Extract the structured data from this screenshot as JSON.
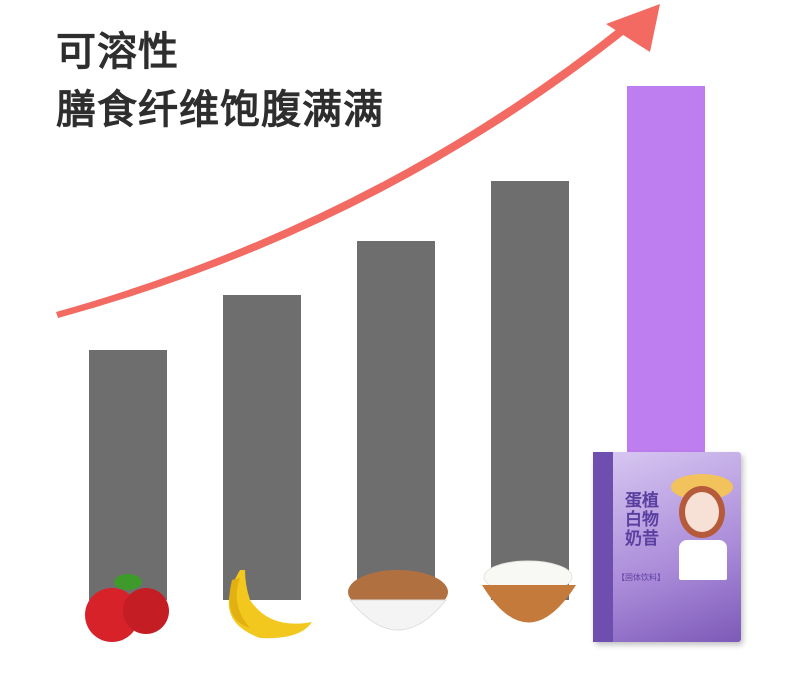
{
  "headline": {
    "line1": "可溶性",
    "line2": "膳食纤维饱腹满满"
  },
  "colors": {
    "bar": "#6e6e6e",
    "highlight_bar": "#bf7ef0",
    "arrow": "#f26a62",
    "text": "#2e2e2e"
  },
  "chart_data": {
    "type": "bar",
    "categories": [
      "apple",
      "banana",
      "nuts",
      "rice",
      "plant protein shake"
    ],
    "values": [
      250,
      305,
      359,
      419,
      514
    ],
    "highlight_index": 4,
    "title": "可溶性 膳食纤维饱腹满满",
    "xlabel": "",
    "ylabel": "",
    "axes": "none",
    "grid": false,
    "trend_arrow": "upward"
  },
  "product": {
    "name": "植物蛋白奶昔",
    "name_lines": [
      "蛋植",
      "白物",
      "奶昔"
    ],
    "type": "【固体饮料】"
  }
}
